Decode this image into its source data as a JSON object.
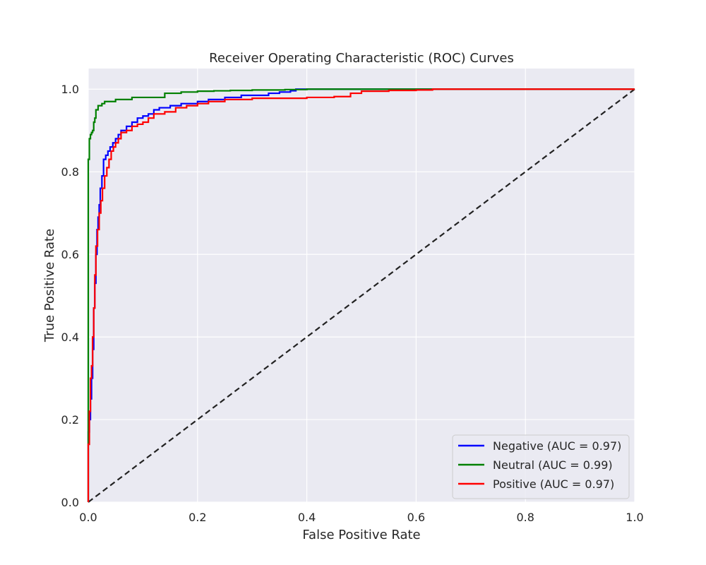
{
  "chart_data": {
    "type": "line",
    "title": "Receiver Operating Characteristic (ROC) Curves",
    "xlabel": "False Positive Rate",
    "ylabel": "True Positive Rate",
    "xlim": [
      0,
      1
    ],
    "ylim": [
      0,
      1.05
    ],
    "xticks": [
      0.0,
      0.2,
      0.4,
      0.6,
      0.8,
      1.0
    ],
    "yticks": [
      0.0,
      0.2,
      0.4,
      0.6,
      0.8,
      1.0
    ],
    "xtick_labels": [
      "0.0",
      "0.2",
      "0.4",
      "0.6",
      "0.8",
      "1.0"
    ],
    "ytick_labels": [
      "0.0",
      "0.2",
      "0.4",
      "0.6",
      "0.8",
      "1.0"
    ],
    "grid": true,
    "legend_position": "lower-right",
    "series": [
      {
        "name": "Negative (AUC = 0.97)",
        "color": "#0000ff",
        "step": true,
        "x": [
          0.0,
          0.0,
          0.002,
          0.004,
          0.006,
          0.008,
          0.01,
          0.012,
          0.014,
          0.016,
          0.018,
          0.02,
          0.022,
          0.025,
          0.028,
          0.032,
          0.036,
          0.04,
          0.045,
          0.05,
          0.055,
          0.06,
          0.07,
          0.08,
          0.09,
          0.1,
          0.11,
          0.12,
          0.13,
          0.15,
          0.17,
          0.2,
          0.22,
          0.25,
          0.28,
          0.3,
          0.33,
          0.35,
          0.37,
          0.38,
          1.0
        ],
        "y": [
          0.0,
          0.17,
          0.2,
          0.25,
          0.3,
          0.37,
          0.47,
          0.53,
          0.6,
          0.66,
          0.69,
          0.72,
          0.76,
          0.79,
          0.83,
          0.84,
          0.85,
          0.86,
          0.87,
          0.88,
          0.89,
          0.9,
          0.91,
          0.92,
          0.93,
          0.935,
          0.94,
          0.95,
          0.955,
          0.96,
          0.965,
          0.97,
          0.975,
          0.98,
          0.985,
          0.985,
          0.99,
          0.993,
          0.996,
          1.0,
          1.0
        ]
      },
      {
        "name": "Neutral (AUC = 0.99)",
        "color": "#008000",
        "step": true,
        "x": [
          0.0,
          0.0,
          0.002,
          0.004,
          0.006,
          0.008,
          0.01,
          0.012,
          0.014,
          0.018,
          0.025,
          0.03,
          0.04,
          0.05,
          0.065,
          0.08,
          0.11,
          0.14,
          0.17,
          0.2,
          0.23,
          0.26,
          0.3,
          0.36,
          0.4,
          0.5,
          0.6,
          0.63,
          1.0
        ],
        "y": [
          0.0,
          0.83,
          0.88,
          0.89,
          0.895,
          0.9,
          0.92,
          0.93,
          0.95,
          0.96,
          0.965,
          0.97,
          0.97,
          0.975,
          0.975,
          0.98,
          0.98,
          0.99,
          0.993,
          0.995,
          0.996,
          0.997,
          0.998,
          0.999,
          1.0,
          1.0,
          1.0,
          1.0,
          1.0
        ]
      },
      {
        "name": "Positive (AUC = 0.97)",
        "color": "#ff0000",
        "step": true,
        "x": [
          0.0,
          0.0,
          0.002,
          0.004,
          0.006,
          0.008,
          0.01,
          0.012,
          0.014,
          0.017,
          0.02,
          0.023,
          0.026,
          0.03,
          0.034,
          0.038,
          0.042,
          0.046,
          0.05,
          0.055,
          0.06,
          0.07,
          0.08,
          0.09,
          0.1,
          0.11,
          0.12,
          0.14,
          0.16,
          0.18,
          0.2,
          0.22,
          0.25,
          0.3,
          0.35,
          0.4,
          0.45,
          0.48,
          0.5,
          0.55,
          0.6,
          0.63,
          1.0
        ],
        "y": [
          0.0,
          0.14,
          0.22,
          0.3,
          0.33,
          0.4,
          0.47,
          0.55,
          0.62,
          0.66,
          0.7,
          0.73,
          0.76,
          0.79,
          0.81,
          0.83,
          0.85,
          0.86,
          0.87,
          0.88,
          0.895,
          0.9,
          0.91,
          0.915,
          0.92,
          0.93,
          0.94,
          0.945,
          0.955,
          0.96,
          0.965,
          0.97,
          0.975,
          0.978,
          0.978,
          0.98,
          0.982,
          0.99,
          0.995,
          0.997,
          0.998,
          1.0,
          1.0
        ]
      }
    ],
    "reference_line": {
      "x": [
        0,
        1
      ],
      "y": [
        0,
        1
      ],
      "color": "#222222",
      "style": "dashed"
    }
  }
}
